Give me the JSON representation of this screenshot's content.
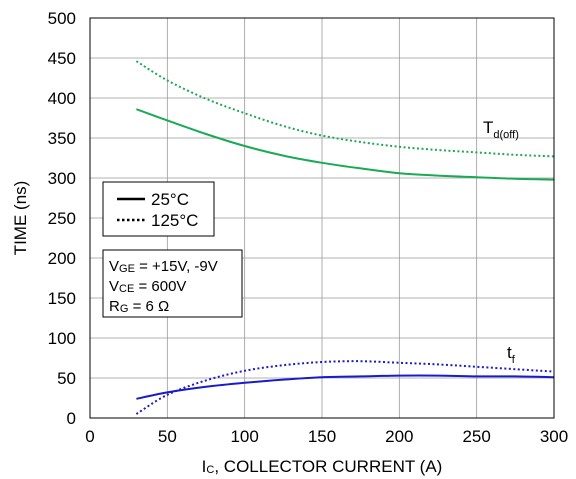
{
  "chart_data": {
    "type": "line",
    "title": "",
    "xlabel": {
      "main": "I",
      "sub": "C",
      "rest": ", COLLECTOR CURRENT (A)"
    },
    "ylabel": "TIME (ns)",
    "xlim": [
      0,
      300
    ],
    "ylim": [
      0,
      500
    ],
    "xticks": [
      0,
      50,
      100,
      150,
      200,
      250,
      300
    ],
    "yticks": [
      0,
      50,
      100,
      150,
      200,
      250,
      300,
      350,
      400,
      450,
      500
    ],
    "grid": true,
    "colors": {
      "green": "#1aaa55",
      "blue": "#1a1acc"
    },
    "series": [
      {
        "group": "td_off",
        "condition": "25°C",
        "style": "solid",
        "color": "#1aaa55",
        "x": [
          30,
          50,
          75,
          100,
          125,
          150,
          175,
          200,
          225,
          250,
          275,
          300
        ],
        "y": [
          386,
          372,
          355,
          340,
          328,
          319,
          312,
          306,
          303,
          301,
          299,
          298
        ]
      },
      {
        "group": "td_off",
        "condition": "125°C",
        "style": "dotted",
        "color": "#1aaa55",
        "x": [
          30,
          50,
          75,
          100,
          125,
          150,
          175,
          200,
          225,
          250,
          275,
          300
        ],
        "y": [
          446,
          422,
          399,
          381,
          365,
          353,
          345,
          339,
          335,
          332,
          329,
          327
        ]
      },
      {
        "group": "tf",
        "condition": "25°C",
        "style": "solid",
        "color": "#1a1acc",
        "x": [
          30,
          50,
          75,
          100,
          125,
          150,
          175,
          200,
          225,
          250,
          275,
          300
        ],
        "y": [
          24,
          32,
          39,
          44,
          48,
          51,
          52,
          53,
          53,
          52,
          52,
          51
        ]
      },
      {
        "group": "tf",
        "condition": "125°C",
        "style": "dotted",
        "color": "#1a1acc",
        "x": [
          30,
          50,
          75,
          100,
          125,
          150,
          175,
          200,
          225,
          250,
          275,
          300
        ],
        "y": [
          5,
          29,
          47,
          59,
          66,
          70,
          71,
          69,
          67,
          64,
          61,
          58
        ]
      }
    ],
    "curve_labels": {
      "td_off": {
        "main": "T",
        "sub": "d(off)"
      },
      "tf": {
        "main": "t",
        "sub": "f"
      }
    },
    "legend": {
      "placement": "left-middle",
      "entries": [
        {
          "label": "25°C",
          "style": "solid"
        },
        {
          "label": "125°C",
          "style": "dotted"
        }
      ]
    },
    "conditions": [
      {
        "main": "V",
        "sub": "GE",
        "rest": " = +15V, -9V"
      },
      {
        "main": "V",
        "sub": "CE",
        "rest": " = 600V"
      },
      {
        "main": "R",
        "sub": "G",
        "rest": " = 6 Ω"
      }
    ]
  }
}
